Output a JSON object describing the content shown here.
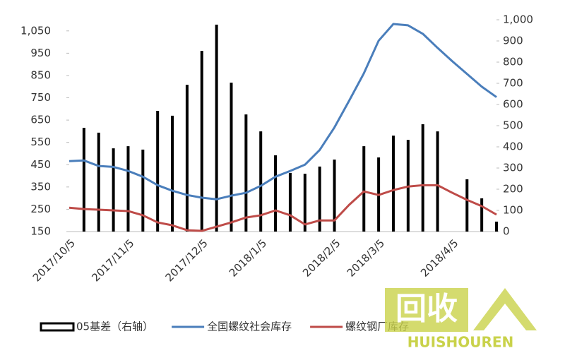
{
  "chart_data": {
    "type": "bar-line",
    "categories": [
      "2017/10/5",
      null,
      null,
      null,
      "2017/11/5",
      null,
      null,
      null,
      null,
      "2017/12/5",
      null,
      null,
      null,
      "2018/1/5",
      null,
      null,
      null,
      null,
      "2018/2/5",
      null,
      null,
      "2018/3/5",
      null,
      null,
      null,
      null,
      "2018/4/5",
      null,
      null,
      null
    ],
    "series": [
      {
        "name": "05基差（右轴）",
        "kind": "bar",
        "axis": "y2",
        "color": "#000000",
        "values": [
          null,
          490,
          467,
          393,
          403,
          387,
          570,
          547,
          693,
          853,
          977,
          703,
          553,
          473,
          360,
          277,
          273,
          307,
          340,
          null,
          403,
          350,
          453,
          433,
          507,
          473,
          null,
          247,
          157,
          47
        ]
      },
      {
        "name": "全国螺纹社会库存",
        "kind": "line",
        "color": "#4a7ebb",
        "values": [
          466,
          469,
          444,
          440,
          422,
          396,
          358,
          333,
          314,
          302,
          295,
          311,
          324,
          355,
          396,
          422,
          450,
          516,
          617,
          737,
          860,
          1006,
          1081,
          1075,
          1037,
          974,
          914,
          857,
          800,
          753
        ]
      },
      {
        "name": "螺纹钢厂库存",
        "kind": "line",
        "color": "#be4b48",
        "values": [
          257,
          251,
          248,
          245,
          242,
          223,
          191,
          178,
          156,
          153,
          172,
          191,
          213,
          223,
          245,
          223,
          182,
          200,
          200,
          270,
          330,
          314,
          336,
          352,
          358,
          358,
          324,
          292,
          264,
          226
        ]
      }
    ],
    "ylim": [
      150,
      1100
    ],
    "yticks": [
      150,
      250,
      350,
      450,
      550,
      650,
      750,
      850,
      950,
      {
        "value": 1050,
        "label": "1,050"
      }
    ],
    "y2lim": [
      0,
      1000
    ],
    "y2ticks": [
      0,
      100,
      200,
      300,
      400,
      500,
      600,
      700,
      800,
      900,
      {
        "value": 1000,
        "label": "1,000"
      }
    ],
    "legend": "bottom",
    "watermark": {
      "main": "回收",
      "sub": "HUISHOUREN"
    }
  }
}
